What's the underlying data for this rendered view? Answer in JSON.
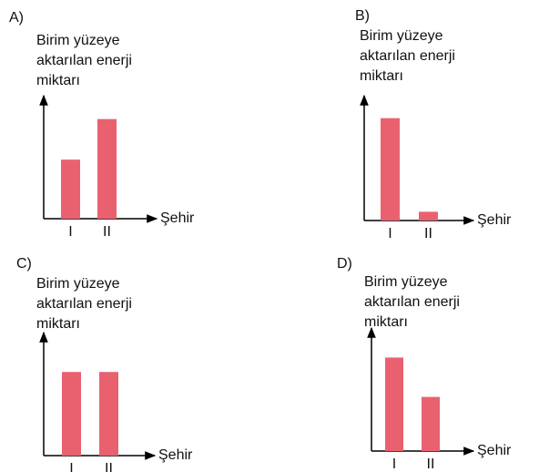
{
  "chart_data": [
    {
      "type": "bar",
      "label": "A)",
      "ylabel": [
        "Birim yüzeye",
        "aktarılan enerji",
        "miktarı"
      ],
      "xlabel": "Şehir",
      "categories": [
        "I",
        "II"
      ],
      "values": [
        4.8,
        8.1
      ],
      "ylim": [
        0,
        10
      ],
      "color": "#e9616f"
    },
    {
      "type": "bar",
      "label": "B)",
      "ylabel": [
        "Birim yüzeye",
        "aktarılan enerji",
        "miktarı"
      ],
      "xlabel": "Şehir",
      "categories": [
        "I",
        "II"
      ],
      "values": [
        8.2,
        0.7
      ],
      "ylim": [
        0,
        10
      ],
      "color": "#e9616f"
    },
    {
      "type": "bar",
      "label": "C)",
      "ylabel": [
        "Birim yüzeye",
        "aktarılan enerji",
        "miktarı"
      ],
      "xlabel": "Şehir",
      "categories": [
        "I",
        "II"
      ],
      "values": [
        6.8,
        6.8
      ],
      "ylim": [
        0,
        10
      ],
      "color": "#e9616f"
    },
    {
      "type": "bar",
      "label": "D)",
      "ylabel": [
        "Birim yüzeye",
        "aktarılan enerji",
        "miktarı"
      ],
      "xlabel": "Şehir",
      "categories": [
        "I",
        "II"
      ],
      "values": [
        7.6,
        4.4
      ],
      "ylim": [
        0,
        10
      ],
      "color": "#e9616f"
    }
  ]
}
